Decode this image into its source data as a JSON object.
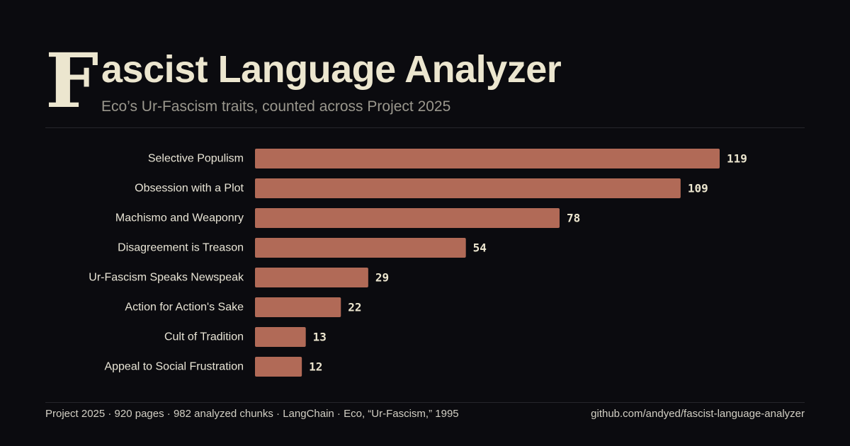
{
  "header": {
    "dropcap": "F",
    "title": "ascist Language Analyzer",
    "subtitle": "Eco’s Ur-Fascism traits, counted across Project 2025"
  },
  "chart_data": {
    "type": "bar",
    "orientation": "horizontal",
    "categories": [
      "Selective Populism",
      "Obsession with a Plot",
      "Machismo and Weaponry",
      "Disagreement is Treason",
      "Ur-Fascism Speaks Newspeak",
      "Action for Action's Sake",
      "Cult of Tradition",
      "Appeal to Social Frustration"
    ],
    "values": [
      119,
      109,
      78,
      54,
      29,
      22,
      13,
      12
    ],
    "title": "",
    "xlabel": "",
    "ylabel": "",
    "xlim": [
      0,
      119
    ],
    "grid": false,
    "bar_color": "#b16a57",
    "data_labels": true
  },
  "footer": {
    "left": "Project 2025 · 920 pages · 982 analyzed chunks · LangChain · Eco, “Ur-Fascism,” 1995",
    "right": "github.com/andyed/fascist-language-analyzer"
  }
}
